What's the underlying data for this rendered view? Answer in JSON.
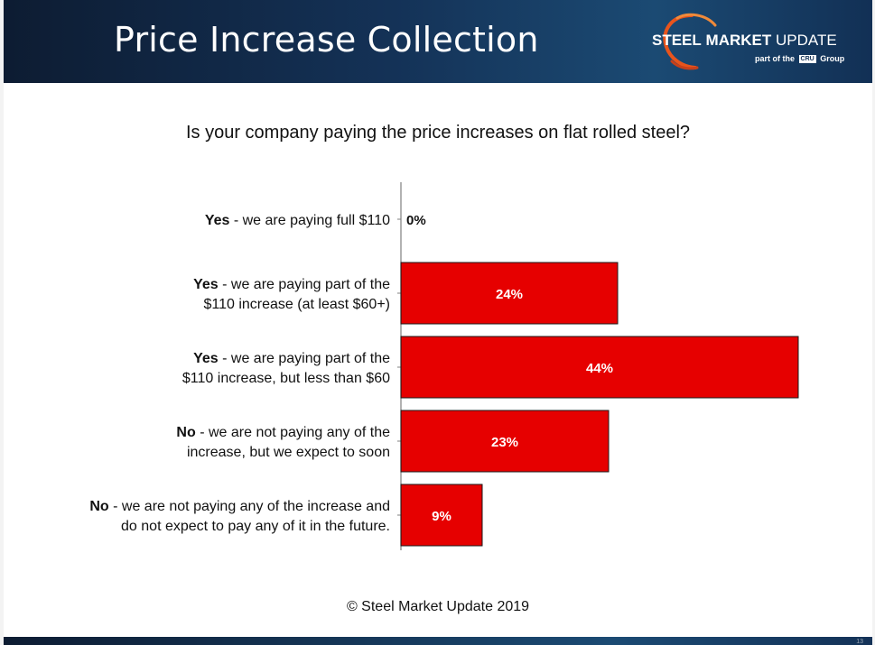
{
  "header": {
    "title": "Price Increase Collection"
  },
  "logo": {
    "word1": "STEEL",
    "word2": "MARKET",
    "word3": "UPDATE",
    "sub_prefix": "part of the",
    "sub_box": "CRU",
    "sub_suffix": "Group"
  },
  "question": "Is your company paying the price increases on flat rolled steel?",
  "chart_data": {
    "type": "bar",
    "orientation": "horizontal",
    "categories": [
      {
        "bold": "Yes",
        "lines": [
          " - we are paying full $110"
        ]
      },
      {
        "bold": "Yes",
        "lines": [
          " - we are paying part of the",
          "$110 increase (at least $60+)"
        ]
      },
      {
        "bold": "Yes",
        "lines": [
          " - we are paying part of the",
          "$110 increase, but less than $60"
        ]
      },
      {
        "bold": "No",
        "lines": [
          " - we are not paying any of the",
          "increase, but we expect to soon"
        ]
      },
      {
        "bold": "No",
        "lines": [
          " - we are not paying any of the increase and",
          "do not expect to pay any of it in the future."
        ]
      }
    ],
    "values": [
      0,
      24,
      44,
      23,
      9
    ],
    "data_labels": [
      "0%",
      "24%",
      "44%",
      "23%",
      "9%"
    ],
    "xlim": [
      0,
      46
    ],
    "bar_color": "#e60000",
    "gridlines": false,
    "legend": "none"
  },
  "footer": "© Steel Market Update 2019",
  "page_number": "13"
}
